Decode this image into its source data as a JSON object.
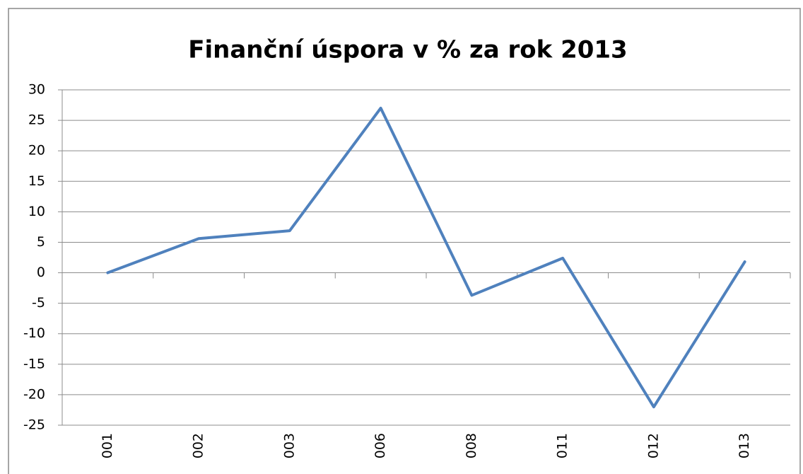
{
  "chart_data": {
    "type": "line",
    "title": "Finanční úspora v % za rok 2013",
    "categories": [
      "001",
      "002",
      "003",
      "006",
      "008",
      "011",
      "012",
      "013"
    ],
    "values": [
      0,
      5.6,
      6.9,
      27,
      -3.7,
      2.4,
      -22,
      1.8
    ],
    "color": "#4f81bd",
    "ylim": [
      -25,
      30
    ],
    "yticks": [
      -25,
      -20,
      -15,
      -10,
      -5,
      0,
      5,
      10,
      15,
      20,
      25,
      30
    ],
    "grid": true
  }
}
